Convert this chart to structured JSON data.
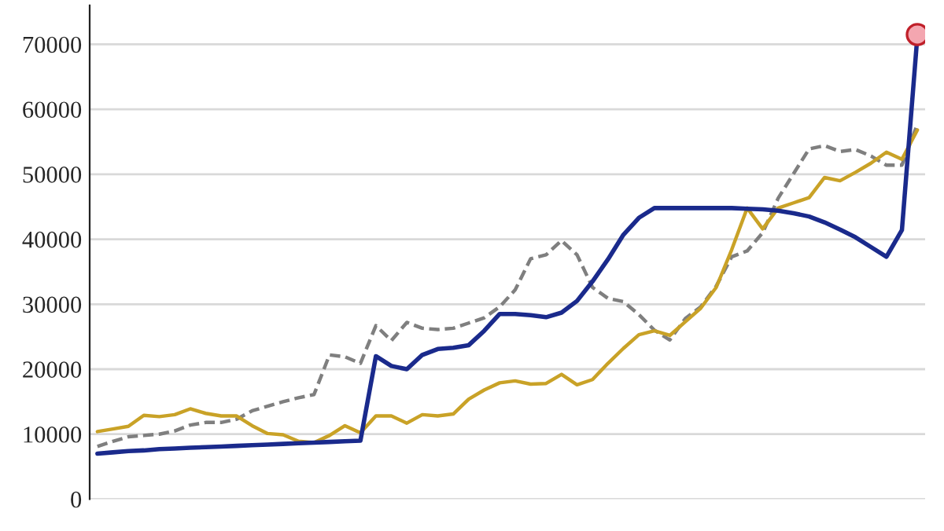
{
  "chart_data": {
    "type": "line",
    "categories": [
      null,
      null,
      null,
      null,
      null,
      null,
      null,
      null,
      null,
      null,
      null,
      null,
      null,
      null,
      null,
      null,
      null,
      null,
      null,
      null,
      null,
      null,
      null,
      null,
      null,
      null,
      null,
      null,
      null,
      null,
      null,
      null,
      null,
      null,
      null,
      null,
      null,
      null,
      null,
      null,
      null,
      null,
      null,
      null,
      null,
      null,
      null,
      null,
      null,
      null,
      null,
      null,
      null,
      null
    ],
    "ylim": [
      0,
      76000
    ],
    "yticks": [
      0,
      10000,
      20000,
      30000,
      40000,
      50000,
      60000,
      70000
    ],
    "grid": "y",
    "series": [
      {
        "color": "#7f7f7f",
        "line_style": "dashed",
        "values": [
          8100,
          8900,
          9600,
          9800,
          10000,
          10500,
          11400,
          11800,
          11800,
          12300,
          13600,
          14300,
          15000,
          15600,
          16100,
          22200,
          21900,
          20900,
          26700,
          24400,
          27200,
          26300,
          26100,
          26300,
          27100,
          27900,
          29600,
          32200,
          37000,
          37600,
          39800,
          37600,
          32600,
          30900,
          30400,
          28400,
          26000,
          24500,
          27800,
          29600,
          32800,
          37300,
          38200,
          41000,
          46300,
          50100,
          53900,
          54400,
          53500,
          53800,
          52800,
          51400,
          51400,
          57700
        ]
      },
      {
        "color": "#c9a227",
        "values": [
          10400,
          10800,
          11200,
          12900,
          12700,
          13000,
          13900,
          13200,
          12800,
          12800,
          11300,
          10100,
          9900,
          8900,
          8700,
          9800,
          11300,
          10200,
          12800,
          12800,
          11700,
          13000,
          12800,
          13100,
          15400,
          16800,
          17900,
          18200,
          17700,
          17800,
          19200,
          17600,
          18400,
          20900,
          23200,
          25300,
          25900,
          25200,
          27300,
          29400,
          32600,
          38400,
          44800,
          41600,
          44800,
          45600,
          46400,
          49500,
          49000,
          50300,
          51700,
          53400,
          52300,
          56800
        ]
      },
      {
        "color": "#1a2a8c",
        "values": [
          7000,
          7200,
          7400,
          7500,
          7700,
          7800,
          7900,
          8000,
          8100,
          8200,
          8300,
          8400,
          8500,
          8600,
          8700,
          8800,
          8900,
          9000,
          22000,
          20500,
          20000,
          22200,
          23100,
          23300,
          23700,
          25900,
          28500,
          28500,
          28300,
          28000,
          28700,
          30500,
          33500,
          36900,
          40700,
          43300,
          44800,
          44800,
          44800,
          44800,
          44800,
          44800,
          44700,
          44600,
          44400,
          44000,
          43500,
          42600,
          41500,
          40300,
          38800,
          37300,
          41400,
          71300
        ]
      },
      {
        "type": "scatter",
        "color": "#f4a6b0",
        "values": [
          null,
          null,
          null,
          null,
          null,
          null,
          null,
          null,
          null,
          null,
          null,
          null,
          null,
          null,
          null,
          null,
          null,
          null,
          null,
          null,
          null,
          null,
          null,
          null,
          null,
          null,
          null,
          null,
          null,
          null,
          null,
          null,
          null,
          null,
          null,
          null,
          null,
          null,
          null,
          null,
          null,
          null,
          null,
          null,
          null,
          null,
          null,
          null,
          null,
          null,
          null,
          null,
          null,
          71500
        ]
      }
    ]
  }
}
